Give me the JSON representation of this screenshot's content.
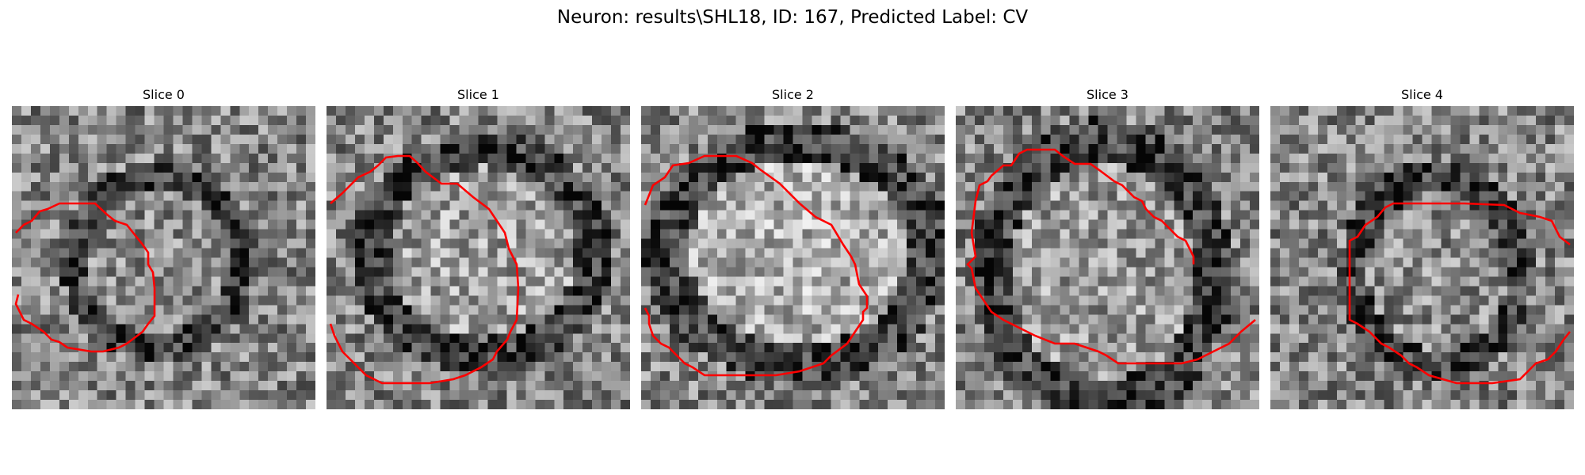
{
  "figure": {
    "title": "Neuron: results\\SHL18, ID: 167, Predicted Label: CV"
  },
  "colors": {
    "contour": "#ff0000"
  },
  "panels": [
    {
      "title": "Slice 0"
    },
    {
      "title": "Slice 1"
    },
    {
      "title": "Slice 2"
    },
    {
      "title": "Slice 3"
    },
    {
      "title": "Slice 4"
    }
  ]
}
